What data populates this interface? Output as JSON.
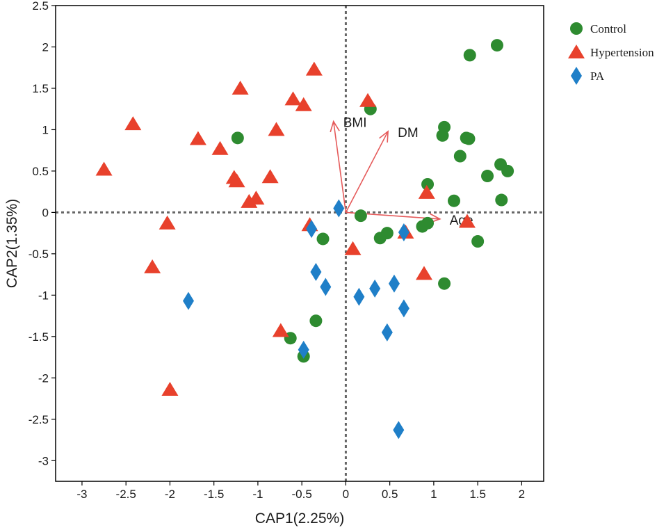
{
  "chart_data": {
    "type": "scatter",
    "xlabel": "CAP1(2.25%)",
    "ylabel": "CAP2(1.35%)",
    "xlim": [
      -3.3,
      2.25
    ],
    "ylim": [
      -3.25,
      2.5
    ],
    "xticks": [
      -3,
      -2.5,
      -2,
      -1.5,
      -1,
      -0.5,
      0,
      0.5,
      1,
      1.5,
      2
    ],
    "yticks": [
      2.5,
      2,
      1.5,
      1,
      0.5,
      0,
      -0.5,
      -1,
      -1.5,
      -2,
      -2.5,
      -3
    ],
    "reference_lines": {
      "x": 0,
      "y": 0,
      "style": "dotted"
    },
    "legend_position": "right-top",
    "series": [
      {
        "name": "Control",
        "marker": "circle",
        "color": "#2e8b30",
        "points": [
          [
            1.72,
            2.02
          ],
          [
            1.41,
            1.9
          ],
          [
            0.28,
            1.25
          ],
          [
            -1.23,
            0.9
          ],
          [
            1.12,
            1.03
          ],
          [
            1.1,
            0.93
          ],
          [
            1.37,
            0.9
          ],
          [
            1.4,
            0.89
          ],
          [
            1.3,
            0.68
          ],
          [
            1.76,
            0.58
          ],
          [
            1.84,
            0.5
          ],
          [
            1.61,
            0.44
          ],
          [
            0.93,
            0.34
          ],
          [
            1.23,
            0.14
          ],
          [
            1.77,
            0.15
          ],
          [
            0.17,
            -0.04
          ],
          [
            0.93,
            -0.13
          ],
          [
            0.87,
            -0.17
          ],
          [
            0.47,
            -0.25
          ],
          [
            0.39,
            -0.31
          ],
          [
            -0.26,
            -0.32
          ],
          [
            1.5,
            -0.35
          ],
          [
            1.12,
            -0.86
          ],
          [
            -0.34,
            -1.31
          ],
          [
            -0.63,
            -1.52
          ],
          [
            -0.48,
            -1.74
          ]
        ]
      },
      {
        "name": "Hypertension",
        "marker": "triangle",
        "color": "#e8412c",
        "points": [
          [
            -0.36,
            1.73
          ],
          [
            0.25,
            1.35
          ],
          [
            -1.2,
            1.5
          ],
          [
            -0.6,
            1.37
          ],
          [
            -0.48,
            1.3
          ],
          [
            -2.42,
            1.07
          ],
          [
            -0.79,
            1.0
          ],
          [
            -1.68,
            0.89
          ],
          [
            -1.43,
            0.77
          ],
          [
            -2.75,
            0.52
          ],
          [
            -1.27,
            0.42
          ],
          [
            -1.24,
            0.38
          ],
          [
            -0.86,
            0.43
          ],
          [
            -1.1,
            0.13
          ],
          [
            -1.02,
            0.17
          ],
          [
            -2.03,
            -0.13
          ],
          [
            0.92,
            0.24
          ],
          [
            1.38,
            -0.11
          ],
          [
            -0.41,
            -0.15
          ],
          [
            0.68,
            -0.24
          ],
          [
            0.08,
            -0.44
          ],
          [
            -2.2,
            -0.66
          ],
          [
            0.89,
            -0.74
          ],
          [
            -0.74,
            -1.43
          ],
          [
            -2.0,
            -2.14
          ]
        ]
      },
      {
        "name": "PA",
        "marker": "diamond",
        "color": "#1f7fc8",
        "points": [
          [
            -0.08,
            0.05
          ],
          [
            -0.39,
            -0.2
          ],
          [
            0.66,
            -0.24
          ],
          [
            -0.34,
            -0.72
          ],
          [
            -0.23,
            -0.9
          ],
          [
            0.15,
            -1.02
          ],
          [
            0.33,
            -0.92
          ],
          [
            0.55,
            -0.86
          ],
          [
            0.66,
            -1.16
          ],
          [
            -1.79,
            -1.07
          ],
          [
            0.47,
            -1.45
          ],
          [
            -0.48,
            -1.66
          ],
          [
            0.6,
            -2.63
          ]
        ]
      }
    ],
    "vectors": [
      {
        "name": "BMI",
        "x": -0.14,
        "y": 1.1
      },
      {
        "name": "DM",
        "x": 0.48,
        "y": 0.98
      },
      {
        "name": "Age",
        "x": 1.07,
        "y": -0.08
      }
    ]
  }
}
